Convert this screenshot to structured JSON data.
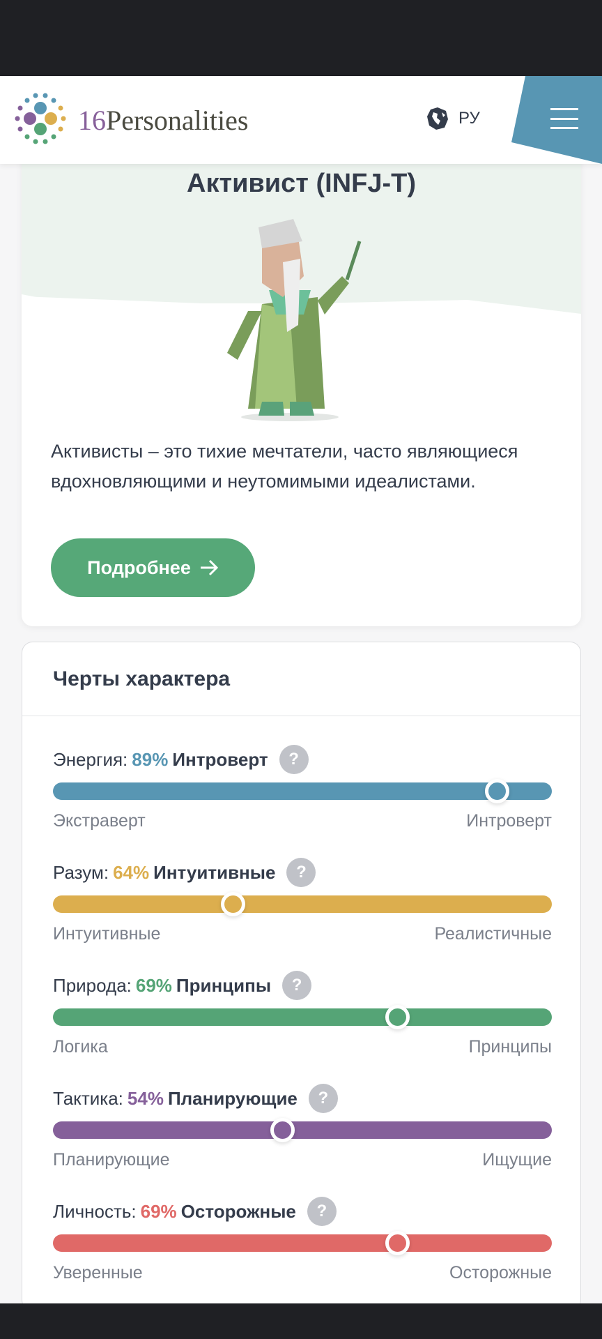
{
  "header": {
    "logo_number": "16",
    "logo_word": "Personalities",
    "language": "РУ",
    "menu_icon": "hamburger-icon",
    "globe_icon": "globe-icon"
  },
  "hero": {
    "title": "Активист (INFJ-T)",
    "description": "Активисты – это тихие мечтатели, часто являющиеся вдохновляющими и неутомимыми идеалистами.",
    "button": "Подробнее",
    "button_icon": "arrow-right-icon"
  },
  "traits": {
    "title": "Черты характера",
    "items": [
      {
        "label": "Энергия:",
        "percent": "89%",
        "trait": "Интроверт",
        "left": "Экстраверт",
        "right": "Интроверт",
        "position": 0.89,
        "color": "#5896b3"
      },
      {
        "label": "Разум:",
        "percent": "64%",
        "trait": "Интуитивные",
        "left": "Интуитивные",
        "right": "Реалистичные",
        "position": 0.36,
        "color": "#dcae4e"
      },
      {
        "label": "Природа:",
        "percent": "69%",
        "trait": "Принципы",
        "left": "Логика",
        "right": "Принципы",
        "position": 0.69,
        "color": "#55a476"
      },
      {
        "label": "Тактика:",
        "percent": "54%",
        "trait": "Планирующие",
        "left": "Планирующие",
        "right": "Ищущие",
        "position": 0.46,
        "color": "#85609a"
      },
      {
        "label": "Личность:",
        "percent": "69%",
        "trait": "Осторожные",
        "left": "Уверенные",
        "right": "Осторожные",
        "position": 0.69,
        "color": "#e06967"
      }
    ]
  }
}
